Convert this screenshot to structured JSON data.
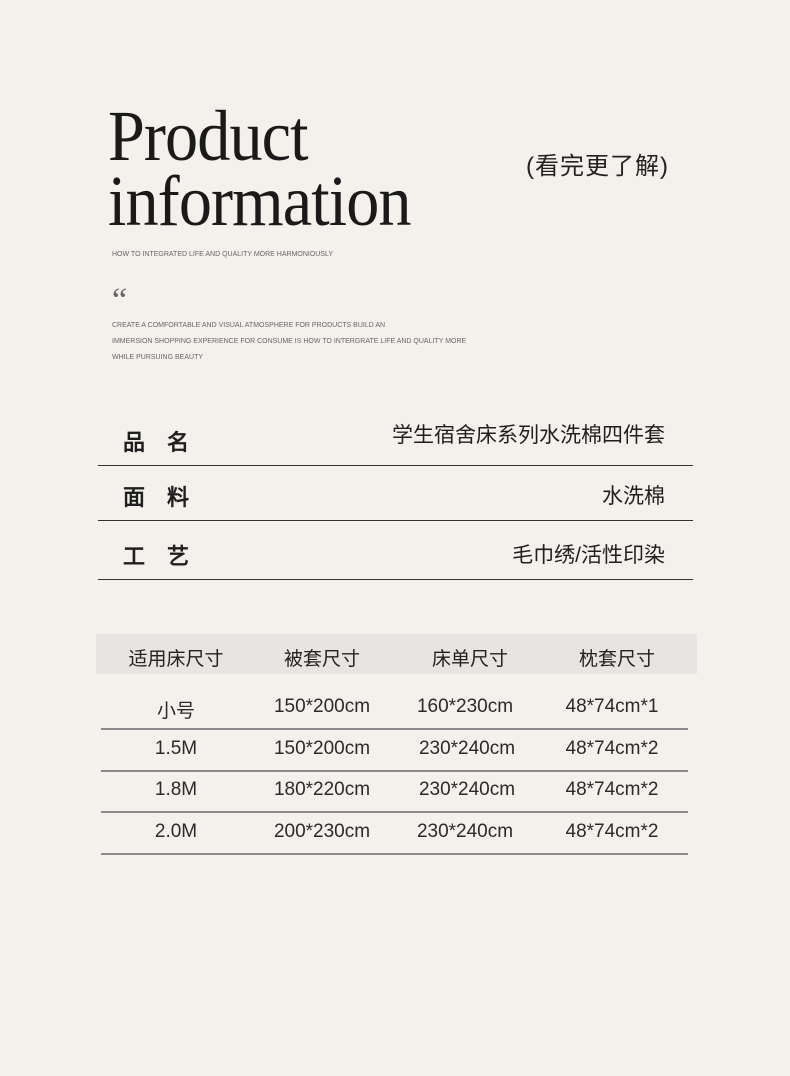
{
  "header": {
    "title_line1": "Product",
    "title_line2": "information",
    "hint": "(看完更了解)",
    "tagline": "HOW TO INTEGRATED LIFE AND QUALITY MORE HARMONIOUSLY",
    "quote_mark": "“",
    "quote_lines": [
      "CREATE A COMFORTABLE AND VISUAL ATMOSPHERE FOR PRODUCTS BUILD AN",
      "IMMERSION SHOPPING EXPERIENCE FOR CONSUME IS HOW TO INTERGRATE LIFE AND QUALITY MORE",
      "WHILE PURSUING BEAUTY"
    ]
  },
  "specs": [
    {
      "label": "品名",
      "value": "学生宿舍床系列水洗棉四件套"
    },
    {
      "label": "面料",
      "value": "水洗棉"
    },
    {
      "label": "工艺",
      "value": "毛巾绣/活性印染"
    }
  ],
  "size_table": {
    "headers": [
      "适用床尺寸",
      "被套尺寸",
      "床单尺寸",
      "枕套尺寸"
    ],
    "rows": [
      [
        "小号",
        "150*200cm",
        "160*230cm",
        "48*74cm*1"
      ],
      [
        "1.5M",
        "150*200cm",
        "230*240cm",
        "48*74cm*2"
      ],
      [
        "1.8M",
        "180*220cm",
        "230*240cm",
        "48*74cm*2"
      ],
      [
        "2.0M",
        "200*230cm",
        "230*240cm",
        "48*74cm*2"
      ]
    ]
  }
}
